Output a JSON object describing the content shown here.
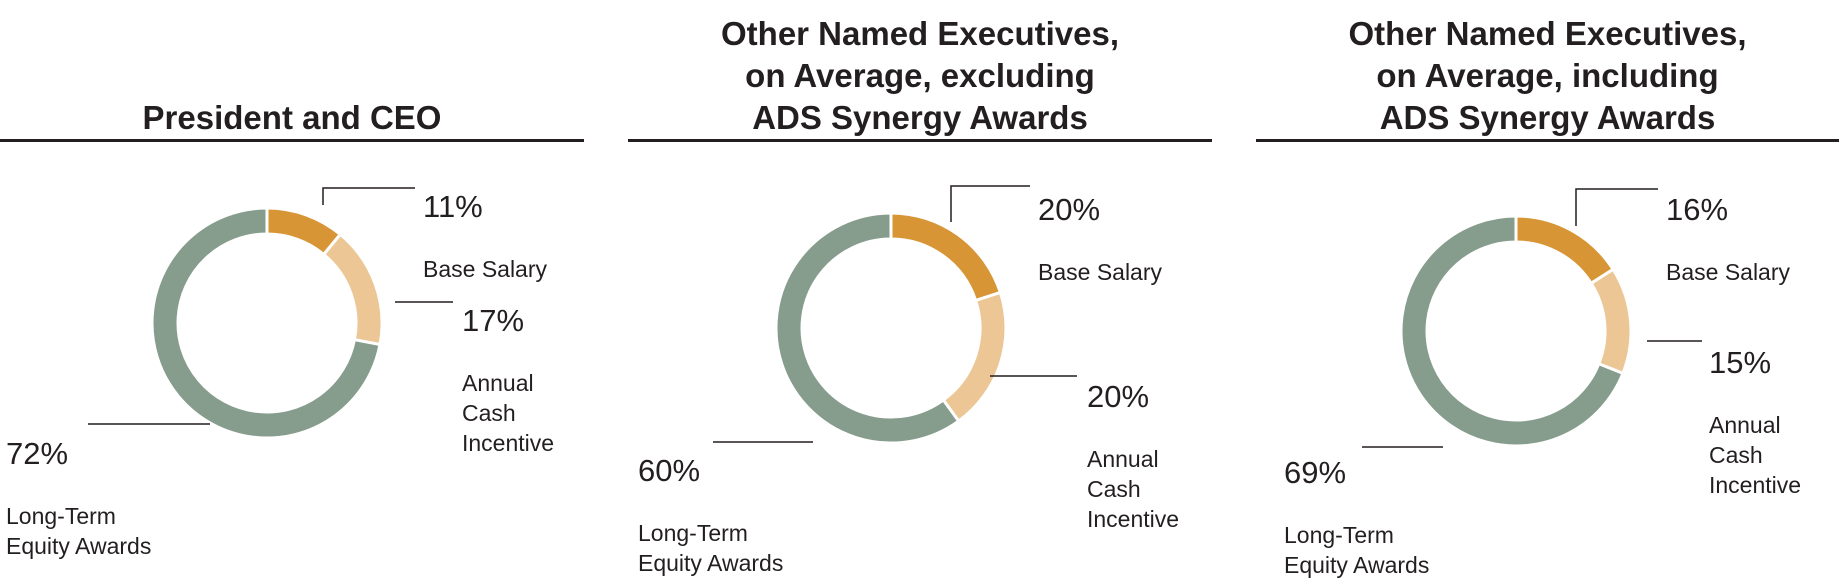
{
  "chart_data": [
    {
      "type": "pie",
      "title": "President and CEO",
      "slices": [
        {
          "pct": "11%",
          "value": 11,
          "label": "Base Salary",
          "color": "#d89535"
        },
        {
          "pct": "17%",
          "value": 17,
          "label": "Annual\nCash\nIncentive",
          "color": "#ecc795"
        },
        {
          "pct": "72%",
          "value": 72,
          "label": "Long-Term\nEquity Awards",
          "color": "#869c8c"
        }
      ]
    },
    {
      "type": "pie",
      "title": "Other Named Executives,\non Average, excluding\nADS Synergy Awards",
      "slices": [
        {
          "pct": "20%",
          "value": 20,
          "label": "Base Salary",
          "color": "#d89535"
        },
        {
          "pct": "20%",
          "value": 20,
          "label": "Annual\nCash\nIncentive",
          "color": "#ecc795"
        },
        {
          "pct": "60%",
          "value": 60,
          "label": "Long-Term\nEquity Awards",
          "color": "#869c8c"
        }
      ]
    },
    {
      "type": "pie",
      "title": "Other Named Executives,\non Average, including\nADS Synergy Awards",
      "slices": [
        {
          "pct": "16%",
          "value": 16,
          "label": "Base Salary",
          "color": "#d89535"
        },
        {
          "pct": "15%",
          "value": 15,
          "label": "Annual\nCash\nIncentive",
          "color": "#ecc795"
        },
        {
          "pct": "69%",
          "value": 69,
          "label": "Long-Term\nEquity Awards",
          "color": "#869c8c"
        }
      ]
    }
  ]
}
